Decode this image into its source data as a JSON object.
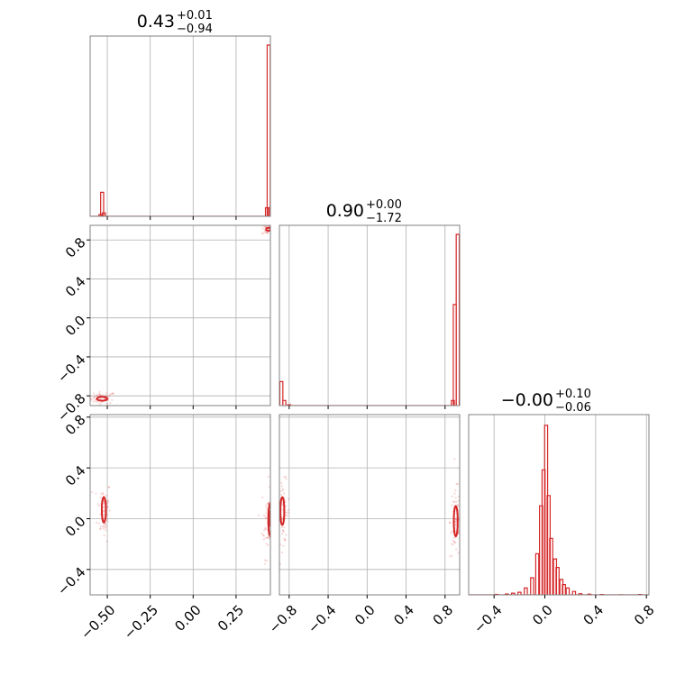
{
  "chart_data": {
    "type": "corner",
    "colors": {
      "series": "#d62728",
      "grid": "#b0b0b0",
      "frame": "#808080"
    },
    "grid": true,
    "params": [
      {
        "title": {
          "value": "0.43",
          "plus": "+0.01",
          "minus": "−0.94"
        }
      },
      {
        "title": {
          "value": "0.90",
          "plus": "+0.00",
          "minus": "−1.72"
        }
      },
      {
        "title": {
          "value": "−0.00",
          "plus": "+0.10",
          "minus": "−0.06"
        }
      }
    ],
    "x_ticks": [
      {
        "values": [
          -0.5,
          -0.25,
          0.0,
          0.25
        ],
        "labels": [
          "−0.50",
          "−0.25",
          "0.00",
          "0.25"
        ]
      },
      {
        "values": [
          -0.8,
          -0.4,
          0.0,
          0.4,
          0.8
        ],
        "labels": [
          "−0.8",
          "−0.4",
          "0.0",
          "0.4",
          "0.8"
        ]
      },
      {
        "values": [
          -0.4,
          0.0,
          0.4,
          0.8
        ],
        "labels": [
          "−0.4",
          "0.0",
          "0.4",
          "0.8"
        ]
      }
    ],
    "y_ticks": [
      null,
      {
        "values": [
          -0.8,
          -0.4,
          0.0,
          0.4,
          0.8
        ],
        "labels": [
          "−0.8",
          "−0.4",
          "0.0",
          "0.4",
          "0.8"
        ]
      },
      {
        "values": [
          -0.4,
          0.0,
          0.4,
          0.8
        ],
        "labels": [
          "−0.4",
          "0.0",
          "0.4",
          "0.8"
        ]
      }
    ],
    "ranges": [
      [
        -0.6,
        0.45
      ],
      [
        -0.9,
        0.95
      ],
      [
        -0.6,
        0.82
      ]
    ],
    "histograms": [
      {
        "bins": [
          [
            -0.54,
            0.01
          ],
          [
            -0.53,
            0.14
          ],
          [
            -0.52,
            0.02
          ],
          [
            0.43,
            0.05
          ],
          [
            0.44,
            1.0
          ],
          [
            0.45,
            0.05
          ]
        ]
      },
      {
        "bins": [
          [
            -0.88,
            0.14
          ],
          [
            -0.85,
            0.03
          ],
          [
            -0.8,
            0.005
          ],
          [
            0.88,
            0.03
          ],
          [
            0.9,
            0.59
          ],
          [
            0.93,
            1.0
          ]
        ]
      },
      {
        "bins": [
          [
            -0.38,
            0.003
          ],
          [
            -0.3,
            0.005
          ],
          [
            -0.25,
            0.01
          ],
          [
            -0.2,
            0.015
          ],
          [
            -0.15,
            0.04
          ],
          [
            -0.1,
            0.1
          ],
          [
            -0.06,
            0.24
          ],
          [
            -0.03,
            0.52
          ],
          [
            -0.01,
            0.73
          ],
          [
            0.01,
            0.99
          ],
          [
            0.03,
            0.58
          ],
          [
            0.05,
            0.33
          ],
          [
            0.08,
            0.21
          ],
          [
            0.1,
            0.16
          ],
          [
            0.13,
            0.09
          ],
          [
            0.15,
            0.06
          ],
          [
            0.18,
            0.04
          ],
          [
            0.23,
            0.02
          ],
          [
            0.28,
            0.007
          ],
          [
            0.35,
            0.004
          ],
          [
            0.45,
            0.002
          ],
          [
            0.6,
            0.001
          ],
          [
            0.75,
            0.002
          ]
        ]
      }
    ],
    "scatter": [
      {
        "pair": [
          0,
          1
        ],
        "clusters": [
          {
            "center": [
              -0.53,
              -0.82
            ],
            "spread": [
              0.04,
              0.03
            ],
            "n": 60
          },
          {
            "center": [
              0.44,
              0.91
            ],
            "spread": [
              0.02,
              0.03
            ],
            "n": 60
          }
        ]
      },
      {
        "pair": [
          0,
          2
        ],
        "clusters": [
          {
            "center": [
              -0.52,
              0.07
            ],
            "spread": [
              0.02,
              0.12
            ],
            "n": 60
          },
          {
            "center": [
              0.44,
              -0.01
            ],
            "spread": [
              0.02,
              0.15
            ],
            "n": 70
          }
        ]
      },
      {
        "pair": [
          1,
          2
        ],
        "clusters": [
          {
            "center": [
              -0.86,
              0.05
            ],
            "spread": [
              0.03,
              0.12
            ],
            "n": 60
          },
          {
            "center": [
              0.91,
              -0.02
            ],
            "spread": [
              0.03,
              0.15
            ],
            "n": 70
          }
        ]
      }
    ],
    "contours": [
      {
        "pair": [
          0,
          1
        ],
        "ellipses": [
          {
            "center": [
              -0.53,
              -0.83
            ],
            "r": [
              0.03,
              0.02
            ]
          },
          {
            "center": [
              0.44,
              0.91
            ],
            "r": [
              0.015,
              0.015
            ]
          }
        ]
      },
      {
        "pair": [
          0,
          2
        ],
        "ellipses": [
          {
            "center": [
              -0.52,
              0.07
            ],
            "r": [
              0.012,
              0.1
            ]
          },
          {
            "center": [
              0.45,
              -0.01
            ],
            "r": [
              0.012,
              0.13
            ]
          },
          {
            "center": [
              0.45,
              0.0
            ],
            "r": [
              0.008,
              0.06
            ]
          }
        ]
      },
      {
        "pair": [
          1,
          2
        ],
        "ellipses": [
          {
            "center": [
              -0.87,
              0.06
            ],
            "r": [
              0.02,
              0.11
            ]
          },
          {
            "center": [
              0.91,
              -0.02
            ],
            "r": [
              0.02,
              0.12
            ]
          }
        ]
      }
    ]
  }
}
